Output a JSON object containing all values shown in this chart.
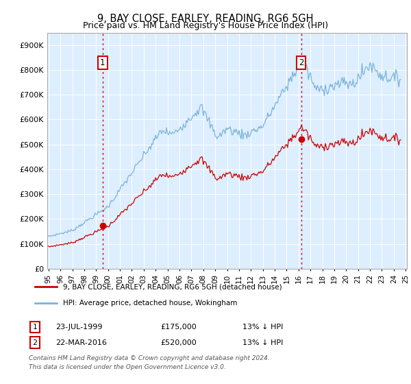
{
  "title": "9, BAY CLOSE, EARLEY, READING, RG6 5GH",
  "subtitle": "Price paid vs. HM Land Registry's House Price Index (HPI)",
  "legend_line1": "9, BAY CLOSE, EARLEY, READING, RG6 5GH (detached house)",
  "legend_line2": "HPI: Average price, detached house, Wokingham",
  "footer": "Contains HM Land Registry data © Crown copyright and database right 2024.\nThis data is licensed under the Open Government Licence v3.0.",
  "annotation1_date": "23-JUL-1999",
  "annotation1_price": "£175,000",
  "annotation1_hpi": "13% ↓ HPI",
  "annotation2_date": "22-MAR-2016",
  "annotation2_price": "£520,000",
  "annotation2_hpi": "13% ↓ HPI",
  "hpi_color": "#7ab4d8",
  "price_color": "#cc0000",
  "marker_color": "#cc0000",
  "vline_color": "#cc0000",
  "bg_color": "#ddeeff",
  "ytick_labels": [
    "£0",
    "£100K",
    "£200K",
    "£300K",
    "£400K",
    "£500K",
    "£600K",
    "£700K",
    "£800K",
    "£900K"
  ],
  "yticks": [
    0,
    100000,
    200000,
    300000,
    400000,
    500000,
    600000,
    700000,
    800000,
    900000
  ],
  "sale1_year": 1999.55,
  "sale1_price": 175000,
  "sale2_year": 2016.22,
  "sale2_price": 520000,
  "xlim_start": 1994.9,
  "xlim_end": 2025.1,
  "ylim_top": 950000
}
